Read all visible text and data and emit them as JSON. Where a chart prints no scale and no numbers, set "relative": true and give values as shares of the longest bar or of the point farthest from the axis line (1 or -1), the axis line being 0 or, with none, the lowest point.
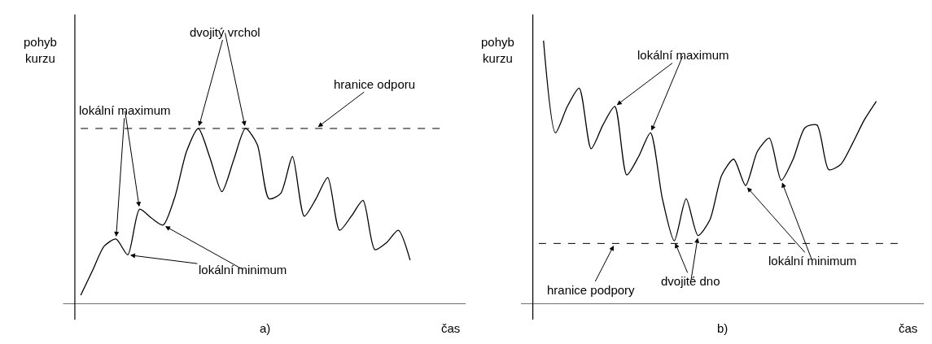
{
  "chart_data": [
    {
      "type": "line",
      "relative": true,
      "title": "a)",
      "xlabel": "čas",
      "ylabel": "pohyb kurzu",
      "marker": "none",
      "line_style": "solid",
      "categories": [
        null,
        null,
        null,
        null,
        null,
        null,
        null,
        null,
        null,
        null,
        null,
        null,
        null,
        null,
        null,
        null,
        null,
        null,
        null,
        null,
        null,
        null,
        null,
        null,
        null,
        null,
        null,
        null,
        null
      ],
      "series": [
        {
          "color": "#000000",
          "values": [
            0.05,
            0.19,
            0.33,
            0.37,
            0.28,
            0.54,
            0.49,
            0.45,
            0.61,
            0.87,
            1,
            0.83,
            0.64,
            0.82,
            1,
            0.91,
            0.6,
            0.63,
            0.84,
            0.5,
            0.6,
            0.72,
            0.42,
            0.5,
            0.59,
            0.31,
            0.35,
            0.42,
            0.25
          ]
        }
      ],
      "ref_lines": [
        {
          "axis": "y",
          "value": 1,
          "color": "#000000",
          "line_style": "dashed"
        }
      ],
      "annotations": [
        "lokální maximum",
        "dvojitý vrchol",
        "hranice odporu",
        "lokální minimum"
      ]
    },
    {
      "type": "line",
      "relative": true,
      "title": "b)",
      "xlabel": "čas",
      "ylabel": "pohyb kurzu",
      "marker": "none",
      "line_style": "solid",
      "categories": [
        null,
        null,
        null,
        null,
        null,
        null,
        null,
        null,
        null,
        null,
        null,
        null,
        null,
        null,
        null,
        null,
        null,
        null,
        null,
        null,
        null,
        null,
        null,
        null,
        null,
        null,
        null,
        null,
        null
      ],
      "series": [
        {
          "color": "#000000",
          "values": [
            1,
            0.65,
            0.75,
            0.82,
            0.59,
            0.68,
            0.75,
            0.49,
            0.56,
            0.65,
            0.4,
            0.24,
            0.4,
            0.26,
            0.32,
            0.49,
            0.55,
            0.45,
            0.58,
            0.63,
            0.47,
            0.55,
            0.67,
            0.68,
            0.51,
            0.53,
            0.61,
            0.7,
            0.77
          ]
        }
      ],
      "ref_lines": [
        {
          "axis": "y",
          "value": 0.23,
          "color": "#000000",
          "line_style": "dashed"
        }
      ],
      "annotations": [
        "lokální maximum",
        "hranice podpory",
        "dvojité dno",
        "lokální minimum"
      ]
    }
  ]
}
